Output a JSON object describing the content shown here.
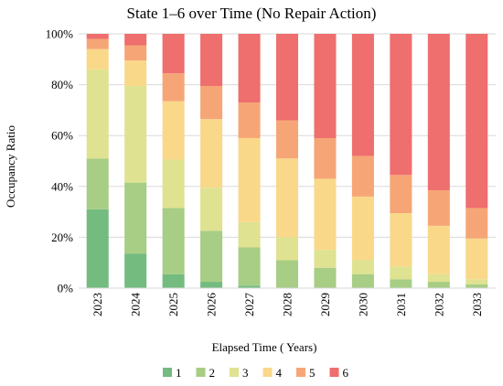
{
  "chart_data": {
    "type": "bar",
    "stacked": true,
    "title": "State 1–6 over Time (No Repair Action)",
    "xlabel": "Elapsed Time ( Years)",
    "ylabel": "Occupancy Ratio",
    "ylim": [
      0,
      100
    ],
    "yticks": [
      "0%",
      "20%",
      "40%",
      "60%",
      "80%",
      "100%"
    ],
    "grid": true,
    "legend_position": "bottom",
    "categories": [
      "2023",
      "2024",
      "2025",
      "2026",
      "2027",
      "2028",
      "2029",
      "2030",
      "2031",
      "2032",
      "2033"
    ],
    "series": [
      {
        "name": "1",
        "color": "#74bb80",
        "values": [
          31,
          13.5,
          5.5,
          2.5,
          1,
          0,
          0,
          0,
          0,
          0,
          0
        ]
      },
      {
        "name": "2",
        "color": "#a8cd85",
        "values": [
          20,
          28,
          26,
          20,
          15,
          11,
          8,
          5.5,
          3.5,
          2.5,
          1.5
        ]
      },
      {
        "name": "3",
        "color": "#dfe290",
        "values": [
          35,
          38,
          19,
          17,
          10,
          9,
          7,
          5.5,
          5,
          3,
          2
        ]
      },
      {
        "name": "4",
        "color": "#f9d88a",
        "values": [
          8,
          10,
          23,
          27,
          33,
          31,
          28,
          25,
          21,
          19,
          16
        ]
      },
      {
        "name": "5",
        "color": "#f6a676",
        "values": [
          4,
          6,
          11,
          13,
          14,
          15,
          16,
          16,
          15,
          14,
          12
        ]
      },
      {
        "name": "6",
        "color": "#ef6e6e",
        "values": [
          2,
          4.5,
          15.5,
          20.5,
          27,
          34,
          41,
          48,
          55.5,
          61.5,
          68.5
        ]
      }
    ]
  }
}
